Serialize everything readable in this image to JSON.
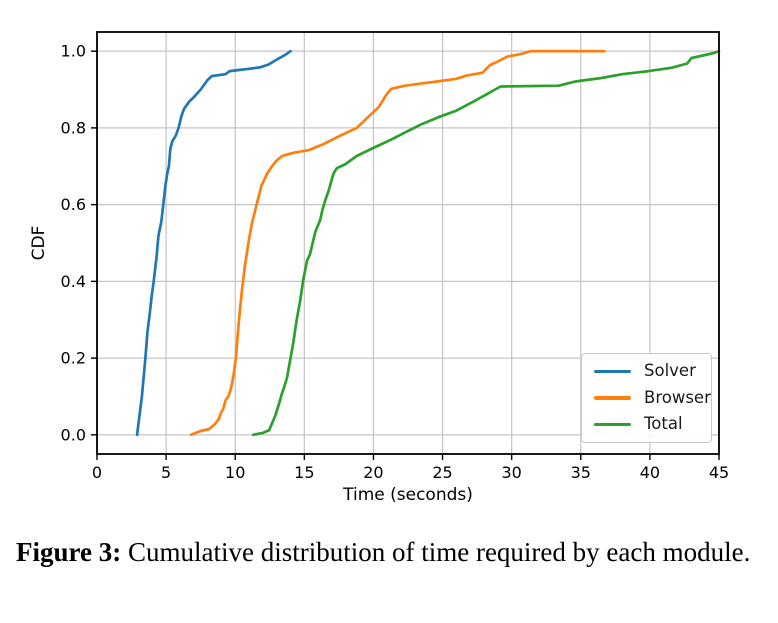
{
  "figure": {
    "caption_label": "Figure 3:",
    "caption_text": "Cumulative distribution of time required by each module."
  },
  "chart_data": {
    "type": "line",
    "subtype": "cdf-step",
    "title": "",
    "xlabel": "Time (seconds)",
    "ylabel": "CDF",
    "xlim": [
      0,
      45
    ],
    "ylim": [
      -0.05,
      1.05
    ],
    "xticks": [
      0,
      5,
      10,
      15,
      20,
      25,
      30,
      35,
      40,
      45
    ],
    "xtick_labels": [
      "0",
      "5",
      "10",
      "15",
      "20",
      "25",
      "30",
      "35",
      "40",
      "45"
    ],
    "yticks": [
      0.0,
      0.2,
      0.4,
      0.6,
      0.8,
      1.0
    ],
    "ytick_labels": [
      "0.0",
      "0.2",
      "0.4",
      "0.6",
      "0.8",
      "1.0"
    ],
    "grid": true,
    "grid_color": "#c5c5c5",
    "axis_color": "#000000",
    "legend_position": "lower right",
    "series": [
      {
        "name": "Solver",
        "color": "#1f77b4",
        "points": [
          [
            2.9,
            0.0
          ],
          [
            3.0,
            0.03
          ],
          [
            3.25,
            0.1
          ],
          [
            3.5,
            0.2
          ],
          [
            3.65,
            0.27
          ],
          [
            3.8,
            0.31
          ],
          [
            3.95,
            0.36
          ],
          [
            4.1,
            0.4
          ],
          [
            4.3,
            0.46
          ],
          [
            4.45,
            0.52
          ],
          [
            4.65,
            0.555
          ],
          [
            4.8,
            0.6
          ],
          [
            4.95,
            0.65
          ],
          [
            5.1,
            0.685
          ],
          [
            5.2,
            0.7
          ],
          [
            5.3,
            0.745
          ],
          [
            5.45,
            0.765
          ],
          [
            5.7,
            0.78
          ],
          [
            5.9,
            0.8
          ],
          [
            6.1,
            0.83
          ],
          [
            6.3,
            0.85
          ],
          [
            6.7,
            0.87
          ],
          [
            7.0,
            0.88
          ],
          [
            7.5,
            0.9
          ],
          [
            8.0,
            0.925
          ],
          [
            8.3,
            0.935
          ],
          [
            9.3,
            0.94
          ],
          [
            9.6,
            0.948
          ],
          [
            10.5,
            0.952
          ],
          [
            11.0,
            0.954
          ],
          [
            11.8,
            0.958
          ],
          [
            12.4,
            0.965
          ],
          [
            13.0,
            0.978
          ],
          [
            13.6,
            0.99
          ],
          [
            14.0,
            1.0
          ]
        ]
      },
      {
        "name": "Browser",
        "color": "#ff7f0e",
        "points": [
          [
            6.8,
            0.0
          ],
          [
            7.5,
            0.01
          ],
          [
            8.1,
            0.015
          ],
          [
            8.45,
            0.025
          ],
          [
            8.8,
            0.04
          ],
          [
            8.95,
            0.055
          ],
          [
            9.15,
            0.07
          ],
          [
            9.3,
            0.09
          ],
          [
            9.5,
            0.1
          ],
          [
            9.65,
            0.115
          ],
          [
            9.8,
            0.14
          ],
          [
            9.9,
            0.16
          ],
          [
            10.05,
            0.2
          ],
          [
            10.2,
            0.27
          ],
          [
            10.35,
            0.33
          ],
          [
            10.5,
            0.38
          ],
          [
            10.7,
            0.44
          ],
          [
            10.95,
            0.5
          ],
          [
            11.2,
            0.55
          ],
          [
            11.55,
            0.6
          ],
          [
            11.9,
            0.65
          ],
          [
            12.3,
            0.68
          ],
          [
            12.65,
            0.7
          ],
          [
            13.0,
            0.715
          ],
          [
            13.4,
            0.727
          ],
          [
            14.2,
            0.735
          ],
          [
            15.3,
            0.742
          ],
          [
            16.4,
            0.758
          ],
          [
            17.6,
            0.78
          ],
          [
            18.8,
            0.8
          ],
          [
            19.6,
            0.828
          ],
          [
            20.4,
            0.855
          ],
          [
            20.9,
            0.885
          ],
          [
            21.3,
            0.902
          ],
          [
            22.3,
            0.91
          ],
          [
            23.5,
            0.916
          ],
          [
            24.8,
            0.922
          ],
          [
            26.0,
            0.928
          ],
          [
            26.7,
            0.936
          ],
          [
            27.9,
            0.944
          ],
          [
            28.4,
            0.963
          ],
          [
            29.1,
            0.975
          ],
          [
            29.7,
            0.986
          ],
          [
            30.7,
            0.993
          ],
          [
            31.4,
            1.0
          ],
          [
            36.7,
            1.0
          ]
        ]
      },
      {
        "name": "Total",
        "color": "#2ca02c",
        "points": [
          [
            11.3,
            0.0
          ],
          [
            12.0,
            0.005
          ],
          [
            12.45,
            0.012
          ],
          [
            12.9,
            0.05
          ],
          [
            13.2,
            0.085
          ],
          [
            13.4,
            0.11
          ],
          [
            13.55,
            0.125
          ],
          [
            13.75,
            0.15
          ],
          [
            14.0,
            0.2
          ],
          [
            14.2,
            0.24
          ],
          [
            14.45,
            0.3
          ],
          [
            14.7,
            0.35
          ],
          [
            14.9,
            0.4
          ],
          [
            15.2,
            0.455
          ],
          [
            15.4,
            0.47
          ],
          [
            15.8,
            0.53
          ],
          [
            16.15,
            0.56
          ],
          [
            16.3,
            0.585
          ],
          [
            16.5,
            0.61
          ],
          [
            16.75,
            0.635
          ],
          [
            17.1,
            0.68
          ],
          [
            17.35,
            0.695
          ],
          [
            17.95,
            0.705
          ],
          [
            18.8,
            0.727
          ],
          [
            20.0,
            0.748
          ],
          [
            21.2,
            0.768
          ],
          [
            22.4,
            0.79
          ],
          [
            23.5,
            0.81
          ],
          [
            24.7,
            0.828
          ],
          [
            26.0,
            0.845
          ],
          [
            27.2,
            0.868
          ],
          [
            28.3,
            0.89
          ],
          [
            28.8,
            0.9
          ],
          [
            29.2,
            0.908
          ],
          [
            33.4,
            0.91
          ],
          [
            34.6,
            0.921
          ],
          [
            36.5,
            0.93
          ],
          [
            38.0,
            0.94
          ],
          [
            39.9,
            0.948
          ],
          [
            41.6,
            0.957
          ],
          [
            42.7,
            0.968
          ],
          [
            43.0,
            0.982
          ],
          [
            44.0,
            0.99
          ],
          [
            44.6,
            0.995
          ],
          [
            45.0,
            1.0
          ]
        ]
      }
    ]
  }
}
